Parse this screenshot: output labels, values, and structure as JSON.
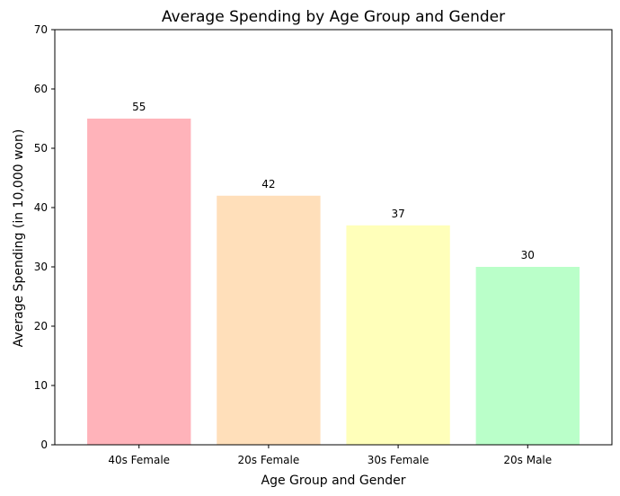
{
  "chart_data": {
    "type": "bar",
    "title": "Average Spending by Age Group and Gender",
    "xlabel": "Age Group and Gender",
    "ylabel": "Average Spending (in 10,000 won)",
    "categories": [
      "40s Female",
      "20s Female",
      "30s Female",
      "20s Male"
    ],
    "values": [
      55,
      42,
      37,
      30
    ],
    "data_labels": [
      "55",
      "42",
      "37",
      "30"
    ],
    "colors": [
      "#ffb3ba",
      "#ffdfba",
      "#ffffba",
      "#baffc9"
    ],
    "ylim": [
      0,
      70
    ],
    "yticks": [
      0,
      10,
      20,
      30,
      40,
      50,
      60,
      70
    ],
    "grid": false,
    "legend": "none"
  }
}
